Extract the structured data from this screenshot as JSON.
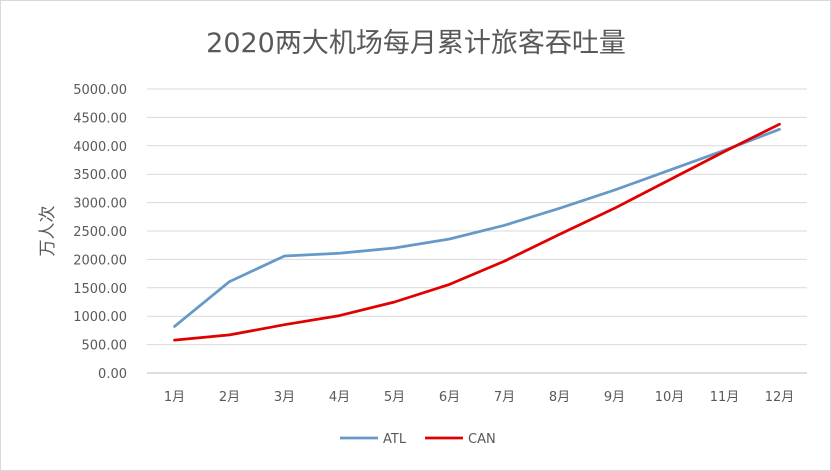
{
  "chart_data": {
    "type": "line",
    "title": "2020两大机场每月累计旅客吞吐量",
    "xlabel": "",
    "ylabel": "万人次",
    "categories": [
      "1月",
      "2月",
      "3月",
      "4月",
      "5月",
      "6月",
      "7月",
      "8月",
      "9月",
      "10月",
      "11月",
      "12月"
    ],
    "series": [
      {
        "name": "ATL",
        "color": "#6699c8",
        "values": [
          820,
          1610,
          2060,
          2110,
          2200,
          2360,
          2600,
          2900,
          3220,
          3570,
          3920,
          4290
        ]
      },
      {
        "name": "CAN",
        "color": "#e00000",
        "values": [
          580,
          670,
          850,
          1010,
          1250,
          1560,
          1970,
          2440,
          2900,
          3400,
          3900,
          4380
        ]
      }
    ],
    "ylim": [
      0,
      5000
    ],
    "yticks": [
      "0.00",
      "500.00",
      "1000.00",
      "1500.00",
      "2000.00",
      "2500.00",
      "3000.00",
      "3500.00",
      "4000.00",
      "4500.00",
      "5000.00"
    ],
    "grid": true,
    "legend_position": "bottom"
  }
}
